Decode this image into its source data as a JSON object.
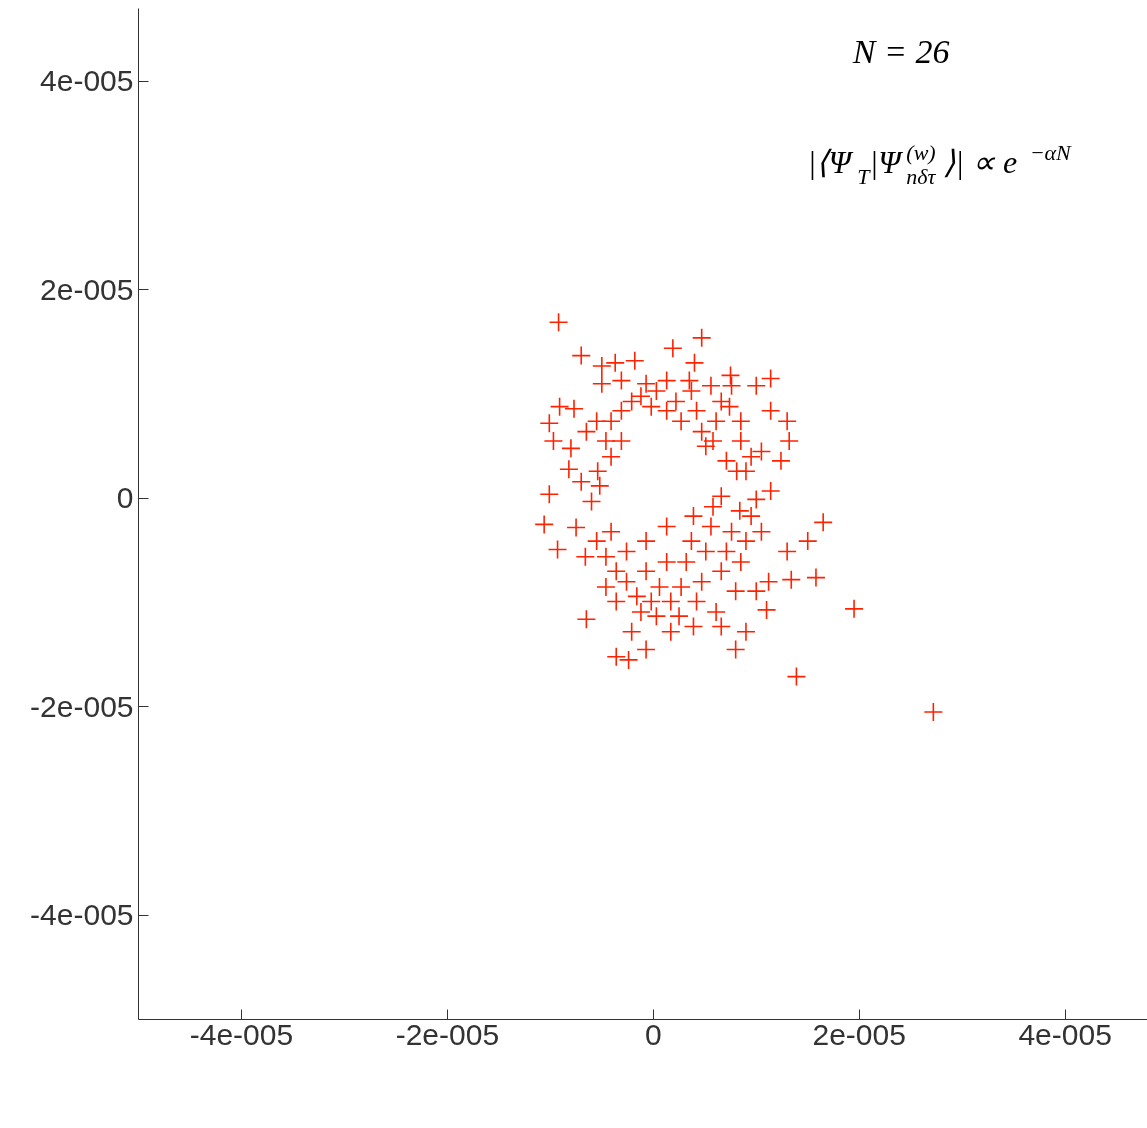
{
  "chart_data": {
    "type": "scatter",
    "marker": "cross",
    "grid": false,
    "annotations": [
      "N = 26",
      "|⟨Ψ$_{T}$|Ψ$^{(w)}$$_{nδτ}$⟩| ∝ e$^{−αN}$"
    ],
    "xlim": [
      -5e-05,
      4.8e-05
    ],
    "ylim": [
      -5e-05,
      4.7e-05
    ],
    "xticks": [
      {
        "value": -4e-05,
        "label": "-4e-005"
      },
      {
        "value": -2e-05,
        "label": "-2e-005"
      },
      0,
      {
        "value": 2e-05,
        "label": "2e-005"
      },
      {
        "value": 4e-05,
        "label": "4e-005"
      }
    ],
    "yticks": [
      {
        "value": -4e-05,
        "label": "-4e-005"
      },
      {
        "value": -2e-05,
        "label": "-2e-005"
      },
      0,
      {
        "value": 2e-05,
        "label": "2e-005"
      },
      {
        "value": 4e-05,
        "label": "4e-005"
      }
    ],
    "series": [
      {
        "color": "#ff2200",
        "x": [
          -9.2e-06,
          4.7e-06,
          1.9e-06,
          -7e-06,
          1.14e-05,
          -5e-06,
          -1.8e-06,
          -3.7e-06,
          4e-06,
          7.5e-06,
          -5e-06,
          -9.1e-06,
          -1.01e-05,
          -7.7e-06,
          -9.7e-06,
          -8e-06,
          -8.2e-06,
          -5.4e-06,
          -1.01e-05,
          -1.06e-05,
          -9.3e-06,
          -7.5e-06,
          -6.6e-06,
          -6.5e-06,
          -3.6e-06,
          -2.4e-06,
          -7e-07,
          -2.1e-06,
          1.7e-06,
          3.9e-06,
          6.6e-06,
          8e-06,
          9e-06,
          1.39e-05,
          1.95e-05,
          2.72e-05,
          1.65e-05,
          1.5e-05,
          1.58e-05,
          1.34e-05,
          1.3e-05,
          1.12e-05,
          1.1e-05,
          1.3e-05,
          1.32e-05,
          1.14e-05,
          1.05e-05,
          1.24e-05,
          1e-05,
          1.14e-05,
          -4.6e-06,
          -4.1e-06,
          -3.1e-06,
          -2.1e-06,
          -1.2e-06,
          -2e-07,
          3e-07,
          1.3e-06,
          2.2e-06,
          2.7e-06,
          3.7e-06,
          4.2e-06,
          4.7e-06,
          5.1e-06,
          5.8e-06,
          6.1e-06,
          6.6e-06,
          7.4e-06,
          7.6e-06,
          8.5e-06,
          8.5e-06,
          9e-06,
          9.5e-06,
          8.1e-06,
          7.1e-06,
          -4.1e-06,
          -3.1e-06,
          -5.5e-06,
          -5.2e-06,
          -6e-06,
          -7e-06,
          -6.5e-06,
          -3.1e-06,
          -7e-07,
          1.3e-06,
          3.5e-06,
          5.6e-06,
          1e-05,
          -5.5e-06,
          -4.6e-06,
          -3.6e-06,
          -4.6e-06,
          -2.6e-06,
          -1.6e-06,
          -7e-07,
          -2e-07,
          6e-07,
          1.3e-06,
          1.7e-06,
          2.7e-06,
          3.2e-06,
          3.7e-06,
          3.9e-06,
          4.2e-06,
          4.7e-06,
          5.1e-06,
          5.6e-06,
          5.8e-06,
          6.6e-06,
          7.1e-06,
          7.6e-06,
          8.4e-06,
          8.5e-06,
          9e-06,
          9.5e-06,
          1.05e-05,
          1e-05,
          8e-06,
          6.1e-06,
          2.5e-06,
          3e-07,
          -1.2e-06,
          -3.6e-06,
          -2.6e-06,
          -7e-07,
          -4.1e-06,
          1.3e-06,
          6.6e-06
        ],
        "values": [
          1.69e-05,
          1.54e-05,
          1.44e-05,
          1.37e-05,
          1.15e-05,
          1.27e-05,
          1.32e-05,
          1.3e-05,
          1.3e-05,
          1.18e-05,
          1.1e-05,
          8.8e-06,
          7.2e-06,
          8.6e-06,
          5.5e-06,
          4.8e-06,
          2.8e-06,
          2.6e-06,
          4e-07,
          -2.5e-06,
          -4.9e-06,
          -2.8e-06,
          -5.6e-06,
          -1.16e-05,
          -1.52e-05,
          -1.55e-05,
          -1.45e-05,
          -1.28e-05,
          -1.28e-05,
          -1.23e-05,
          -1.23e-05,
          -1.45e-05,
          -1.28e-05,
          -1.71e-05,
          -1.06e-05,
          -2.05e-05,
          -2.3e-06,
          -4.1e-06,
          -7.6e-06,
          -7.8e-06,
          -5.1e-06,
          -8e-06,
          -1.07e-05,
          7.4e-06,
          5.5e-06,
          8.4e-06,
          4.5e-06,
          3.6e-06,
          -1e-07,
          7e-07,
          5.5e-06,
          7.4e-06,
          8.4e-06,
          9.3e-06,
          9.8e-06,
          8.8e-06,
          1.03e-05,
          8.4e-06,
          9.3e-06,
          7.4e-06,
          1.03e-05,
          8.4e-06,
          6.4e-06,
          5e-06,
          5.5e-06,
          7.4e-06,
          9.3e-06,
          8.8e-06,
          1.08e-05,
          7.4e-06,
          5.5e-06,
          2.6e-06,
          4e-06,
          2.6e-06,
          3.6e-06,
          4e-06,
          5.5e-06,
          7.4e-06,
          1.2e-06,
          -3e-07,
          1.6e-06,
          6.4e-06,
          1.13e-05,
          1.1e-05,
          1.13e-05,
          1.13e-05,
          1.08e-05,
          1.08e-05,
          -4.1e-06,
          -5.6e-06,
          -7e-06,
          -8.5e-06,
          -8e-06,
          -9.4e-06,
          -7e-06,
          -9.9e-06,
          -8.5e-06,
          -6.1e-06,
          -9.9e-06,
          -8.5e-06,
          -6.1e-06,
          -4.1e-06,
          -1.7e-06,
          -9.9e-06,
          -8e-06,
          -5.1e-06,
          -2.7e-06,
          -8e-07,
          -7e-06,
          -5.1e-06,
          -3.2e-06,
          -1.2e-06,
          -6.1e-06,
          -4.1e-06,
          -1.7e-06,
          -3.2e-06,
          -8.9e-06,
          -8.9e-06,
          -1.09e-05,
          -1.13e-05,
          -1.13e-05,
          -1.09e-05,
          -9.9e-06,
          -5.1e-06,
          -4.1e-06,
          -3.2e-06,
          -2.7e-06,
          2e-07
        ]
      }
    ]
  }
}
